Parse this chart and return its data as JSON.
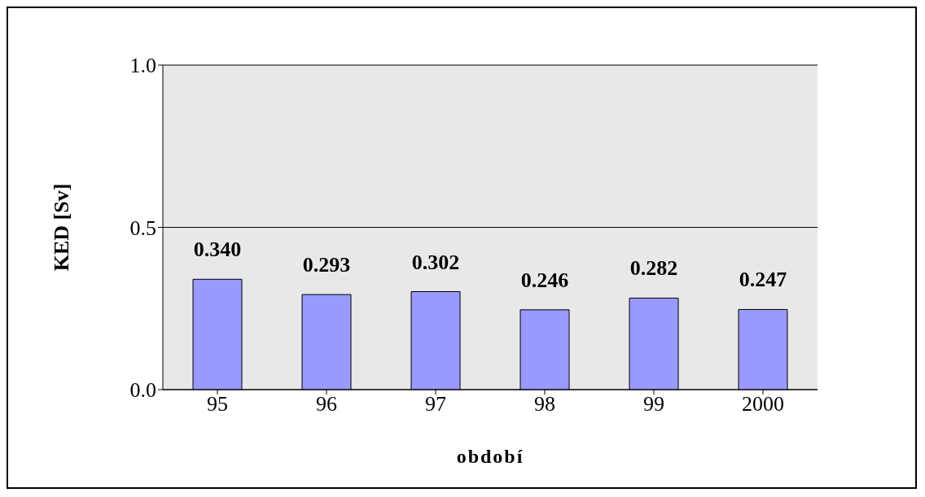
{
  "chart_data": {
    "type": "bar",
    "xlabel": "období",
    "ylabel": "KED [Sv]",
    "categories": [
      "95",
      "96",
      "97",
      "98",
      "99",
      "2000"
    ],
    "values": [
      0.34,
      0.293,
      0.302,
      0.246,
      0.282,
      0.247
    ],
    "value_labels": [
      "0.340",
      "0.293",
      "0.302",
      "0.246",
      "0.282",
      "0.247"
    ],
    "color": "#9999ff",
    "ylim": [
      0,
      1
    ],
    "yticks": [
      {
        "value": 0,
        "label": "0.0"
      },
      {
        "value": 0.5,
        "label": "0.5"
      },
      {
        "value": 1,
        "label": "1.0"
      }
    ],
    "grid": "y",
    "legend": false
  }
}
